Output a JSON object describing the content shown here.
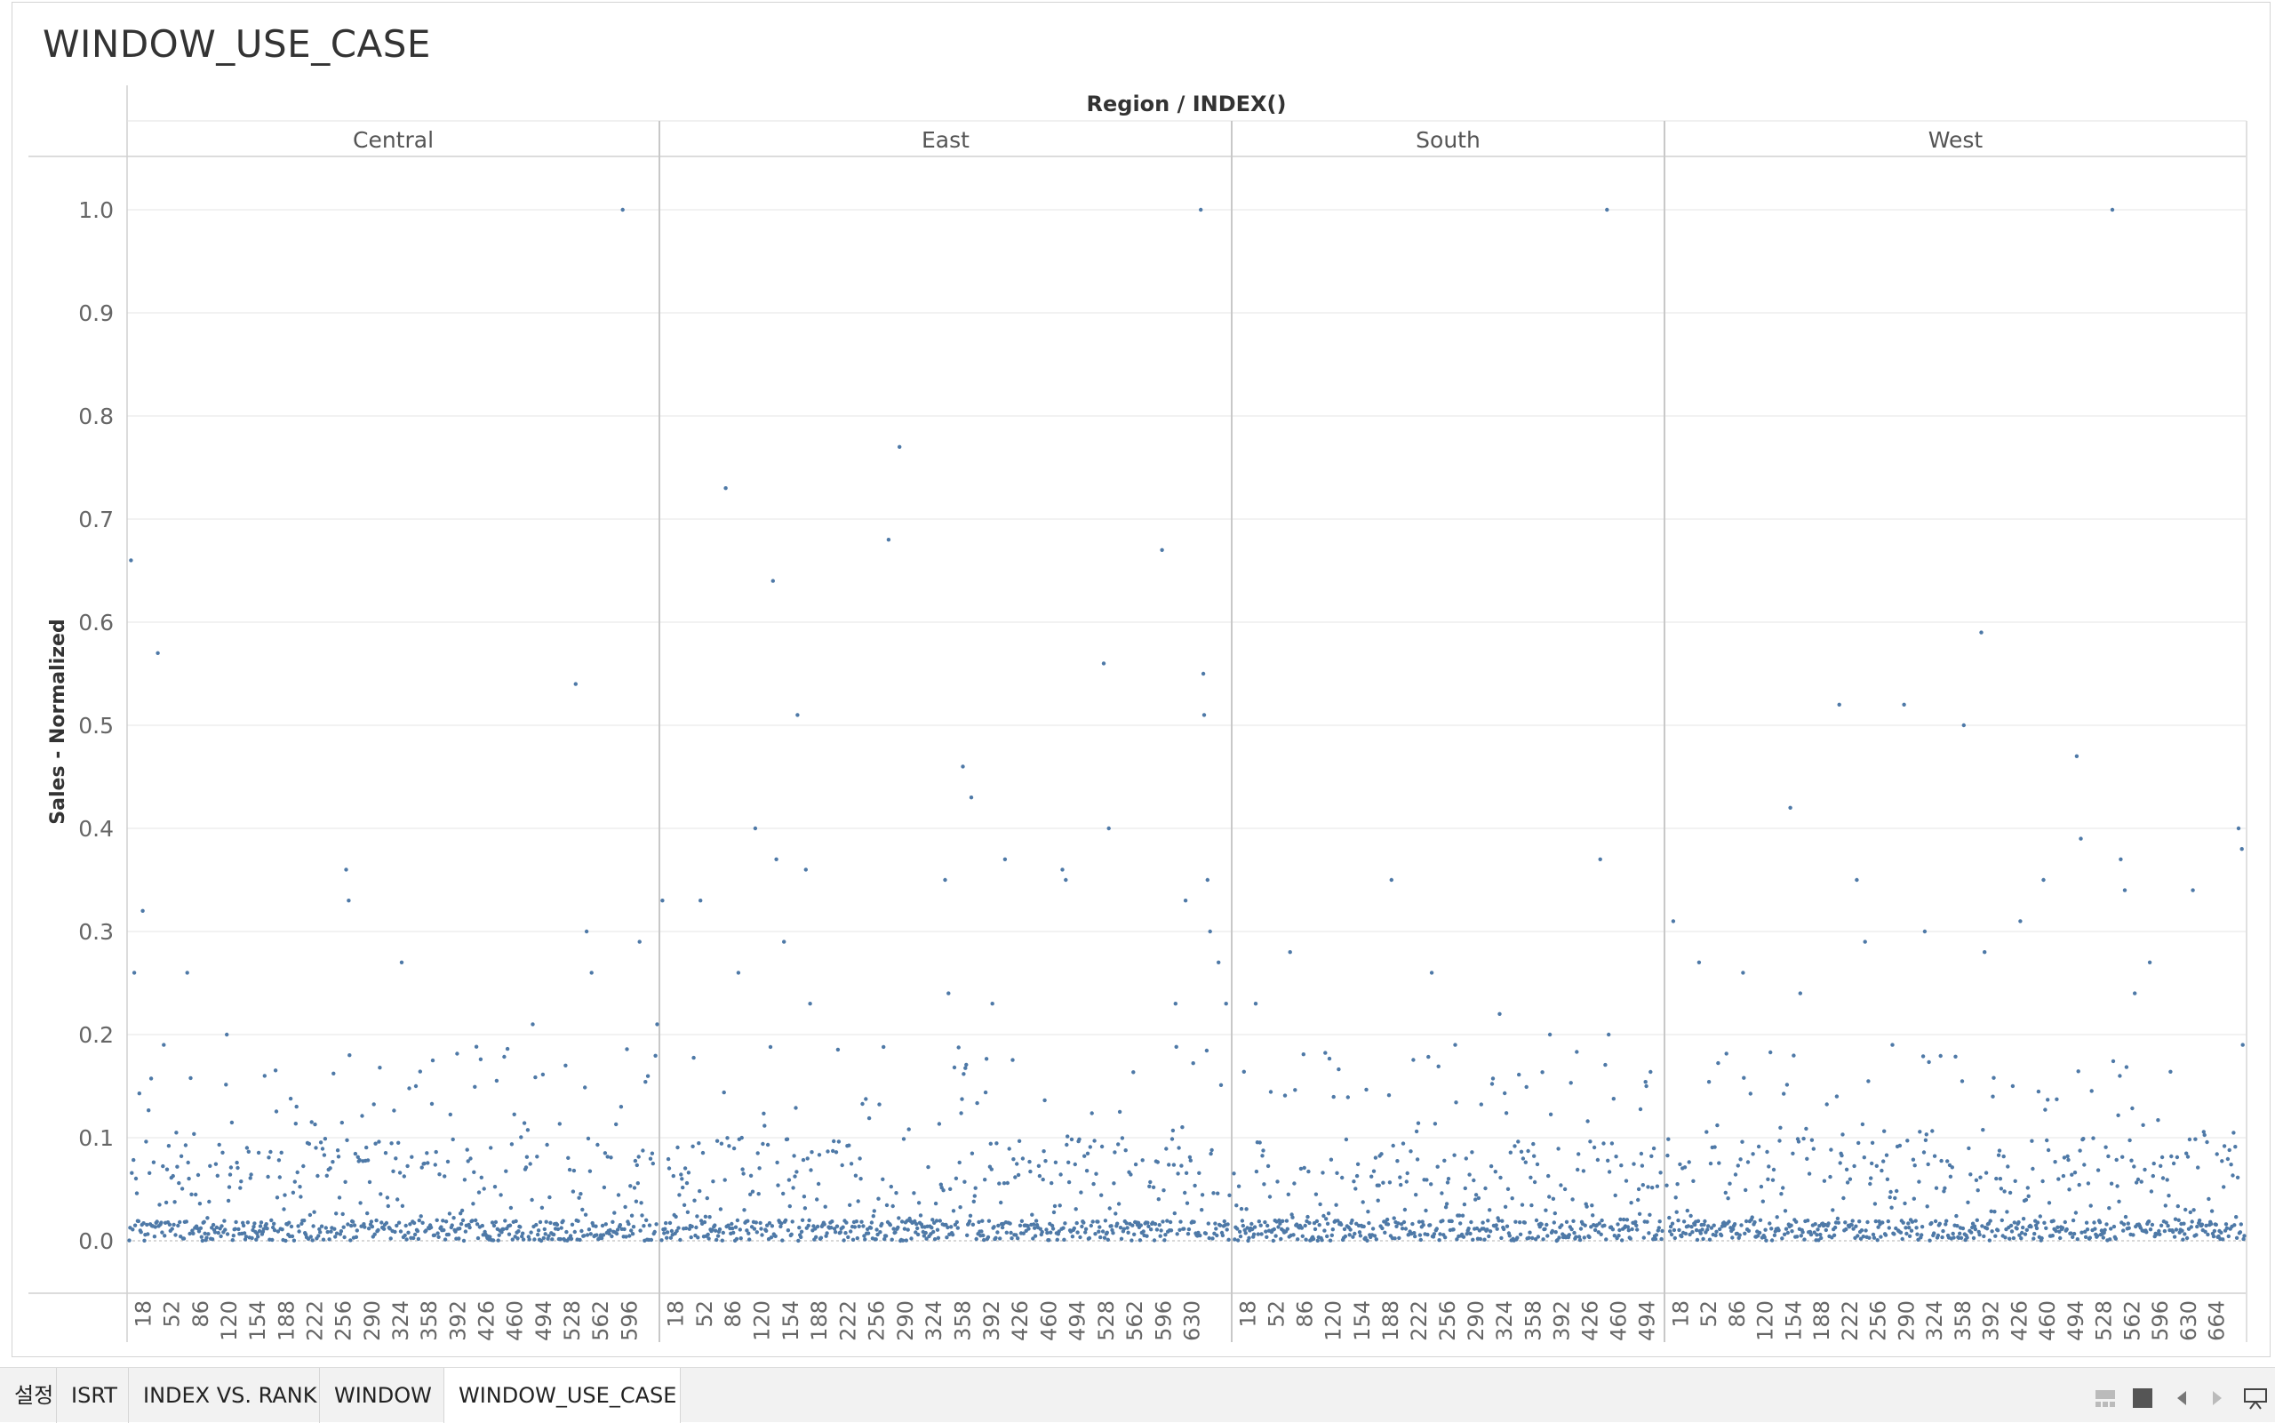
{
  "sheet": {
    "title": "WINDOW_USE_CASE"
  },
  "tabs": [
    {
      "label": "설정",
      "active": false
    },
    {
      "label": "ISRT",
      "active": false
    },
    {
      "label": "INDEX VS. RANK",
      "active": false
    },
    {
      "label": "WINDOW",
      "active": false
    },
    {
      "label": "WINDOW_USE_CASE",
      "active": true
    }
  ],
  "nav_icons": [
    "filmstrip-icon",
    "single-sheet-icon",
    "previous-sheet-icon",
    "next-sheet-icon",
    "presentation-mode-icon"
  ],
  "colors": {
    "mark": "#4e79a7",
    "gridline": "#eeeeee",
    "divider": "#c8c8c8"
  },
  "chart_data": {
    "type": "scatter",
    "column_header": "Region / INDEX()",
    "ylabel": "Sales - Normalized",
    "ylim": [
      0,
      1.0
    ],
    "yticks": [
      "0.0",
      "0.1",
      "0.2",
      "0.3",
      "0.4",
      "0.5",
      "0.6",
      "0.7",
      "0.8",
      "0.9",
      "1.0"
    ],
    "grid": true,
    "panels": [
      {
        "region": "Central",
        "count": 629,
        "xticks": [
          "18",
          "52",
          "86",
          "120",
          "154",
          "188",
          "222",
          "256",
          "290",
          "324",
          "358",
          "392",
          "426",
          "460",
          "494",
          "528",
          "562",
          "596"
        ],
        "peaks": [
          [
            3,
            0.66
          ],
          [
            7,
            0.26
          ],
          [
            17,
            0.32
          ],
          [
            35,
            0.57
          ],
          [
            42,
            0.19
          ],
          [
            70,
            0.26
          ],
          [
            117,
            0.2
          ],
          [
            162,
            0.16
          ],
          [
            259,
            0.36
          ],
          [
            262,
            0.33
          ],
          [
            263,
            0.18
          ],
          [
            325,
            0.27
          ],
          [
            342,
            0.15
          ],
          [
            481,
            0.21
          ],
          [
            520,
            0.17
          ],
          [
            532,
            0.54
          ],
          [
            545,
            0.3
          ],
          [
            551,
            0.26
          ],
          [
            588,
            1.0
          ],
          [
            608,
            0.29
          ],
          [
            629,
            0.21
          ]
        ]
      },
      {
        "region": "East",
        "count": 674,
        "xticks": [
          "18",
          "52",
          "86",
          "120",
          "154",
          "188",
          "222",
          "256",
          "290",
          "324",
          "358",
          "392",
          "426",
          "460",
          "494",
          "528",
          "562",
          "596",
          "630"
        ],
        "peaks": [
          [
            2,
            0.33
          ],
          [
            47,
            0.33
          ],
          [
            77,
            0.73
          ],
          [
            92,
            0.26
          ],
          [
            112,
            0.4
          ],
          [
            133,
            0.64
          ],
          [
            137,
            0.37
          ],
          [
            146,
            0.29
          ],
          [
            162,
            0.51
          ],
          [
            172,
            0.36
          ],
          [
            177,
            0.23
          ],
          [
            270,
            0.68
          ],
          [
            283,
            0.77
          ],
          [
            337,
            0.35
          ],
          [
            341,
            0.24
          ],
          [
            358,
            0.46
          ],
          [
            368,
            0.43
          ],
          [
            393,
            0.23
          ],
          [
            408,
            0.37
          ],
          [
            476,
            0.36
          ],
          [
            480,
            0.35
          ],
          [
            525,
            0.56
          ],
          [
            531,
            0.4
          ],
          [
            594,
            0.67
          ],
          [
            610,
            0.23
          ],
          [
            622,
            0.33
          ],
          [
            640,
            1.0
          ],
          [
            643,
            0.55
          ],
          [
            644,
            0.51
          ],
          [
            648,
            0.35
          ],
          [
            651,
            0.3
          ],
          [
            661,
            0.27
          ],
          [
            670,
            0.23
          ]
        ]
      },
      {
        "region": "South",
        "count": 512,
        "xticks": [
          "18",
          "52",
          "86",
          "120",
          "154",
          "188",
          "222",
          "256",
          "290",
          "324",
          "358",
          "392",
          "426",
          "460",
          "494"
        ],
        "peaks": [
          [
            27,
            0.23
          ],
          [
            68,
            0.28
          ],
          [
            189,
            0.35
          ],
          [
            237,
            0.26
          ],
          [
            265,
            0.19
          ],
          [
            318,
            0.22
          ],
          [
            378,
            0.2
          ],
          [
            438,
            0.37
          ],
          [
            446,
            1.0
          ],
          [
            448,
            0.2
          ],
          [
            493,
            0.15
          ]
        ]
      },
      {
        "region": "West",
        "count": 697,
        "xticks": [
          "18",
          "52",
          "86",
          "120",
          "154",
          "188",
          "222",
          "256",
          "290",
          "324",
          "358",
          "392",
          "426",
          "460",
          "494",
          "528",
          "562",
          "596",
          "630",
          "664"
        ],
        "peaks": [
          [
            9,
            0.31
          ],
          [
            40,
            0.27
          ],
          [
            93,
            0.26
          ],
          [
            150,
            0.42
          ],
          [
            162,
            0.24
          ],
          [
            209,
            0.52
          ],
          [
            230,
            0.35
          ],
          [
            240,
            0.29
          ],
          [
            287,
            0.52
          ],
          [
            312,
            0.3
          ],
          [
            359,
            0.5
          ],
          [
            380,
            0.59
          ],
          [
            384,
            0.28
          ],
          [
            427,
            0.31
          ],
          [
            455,
            0.35
          ],
          [
            495,
            0.47
          ],
          [
            500,
            0.39
          ],
          [
            538,
            1.0
          ],
          [
            548,
            0.37
          ],
          [
            553,
            0.34
          ],
          [
            565,
            0.24
          ],
          [
            583,
            0.27
          ],
          [
            635,
            0.34
          ],
          [
            690,
            0.4
          ],
          [
            694,
            0.38
          ],
          [
            695,
            0.19
          ]
        ]
      }
    ]
  }
}
